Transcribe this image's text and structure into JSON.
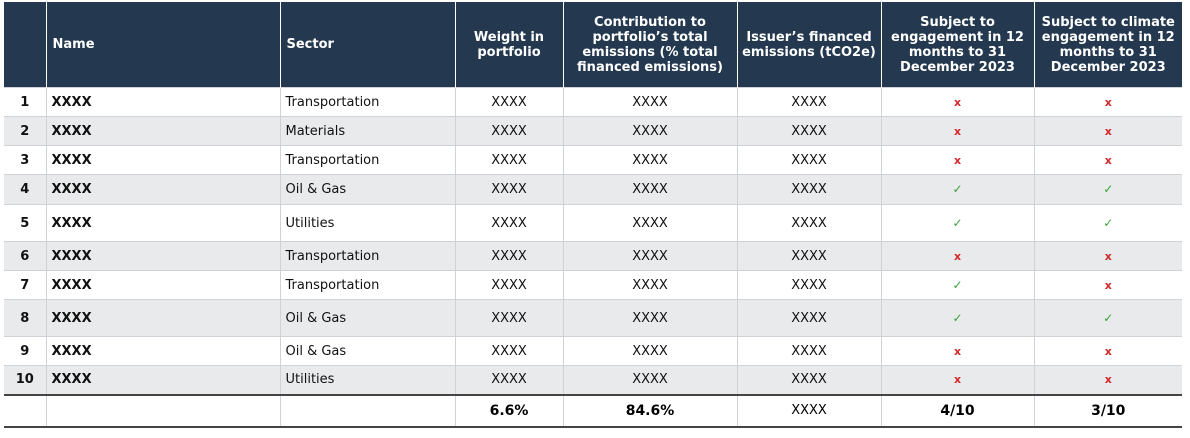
{
  "headers": {
    "num": "",
    "name": "Name",
    "sector": "Sector",
    "weight": "Weight in portfolio",
    "contribution": "Contribution to portfolio’s total emissions (% total financed emissions)",
    "issuer": "Issuer’s financed emissions (tCO2e)",
    "engagement": "Subject to engagement in 12 months to 31 December 2023",
    "climate": "Subject to climate engagement in 12 months to 31 December 2023"
  },
  "rows": [
    {
      "num": "1",
      "name": "XXXX",
      "sector": "Transportation",
      "weight": "XXXX",
      "contribution": "XXXX",
      "issuer": "XXXX",
      "engagement": "x",
      "climate": "x"
    },
    {
      "num": "2",
      "name": "XXXX",
      "sector": "Materials",
      "weight": "XXXX",
      "contribution": "XXXX",
      "issuer": "XXXX",
      "engagement": "x",
      "climate": "x"
    },
    {
      "num": "3",
      "name": "XXXX",
      "sector": "Transportation",
      "weight": "XXXX",
      "contribution": "XXXX",
      "issuer": "XXXX",
      "engagement": "x",
      "climate": "x"
    },
    {
      "num": "4",
      "name": "XXXX",
      "sector": "Oil & Gas",
      "weight": "XXXX",
      "contribution": "XXXX",
      "issuer": "XXXX",
      "engagement": "✓",
      "climate": "✓"
    },
    {
      "num": "5",
      "name": "XXXX",
      "sector": "Utilities",
      "weight": "XXXX",
      "contribution": "XXXX",
      "issuer": "XXXX",
      "engagement": "✓",
      "climate": "✓"
    },
    {
      "num": "6",
      "name": "XXXX",
      "sector": "Transportation",
      "weight": "XXXX",
      "contribution": "XXXX",
      "issuer": "XXXX",
      "engagement": "x",
      "climate": "x"
    },
    {
      "num": "7",
      "name": "XXXX",
      "sector": "Transportation",
      "weight": "XXXX",
      "contribution": "XXXX",
      "issuer": "XXXX",
      "engagement": "✓",
      "climate": "x"
    },
    {
      "num": "8",
      "name": "XXXX",
      "sector": "Oil & Gas",
      "weight": "XXXX",
      "contribution": "XXXX",
      "issuer": "XXXX",
      "engagement": "✓",
      "climate": "✓"
    },
    {
      "num": "9",
      "name": "XXXX",
      "sector": "Oil & Gas",
      "weight": "XXXX",
      "contribution": "XXXX",
      "issuer": "XXXX",
      "engagement": "x",
      "climate": "x"
    },
    {
      "num": "10",
      "name": "XXXX",
      "sector": "Utilities",
      "weight": "XXXX",
      "contribution": "XXXX",
      "issuer": "XXXX",
      "engagement": "x",
      "climate": "x"
    }
  ],
  "totals": {
    "num": "",
    "name": "",
    "sector": "",
    "weight": "6.6%",
    "contribution": "84.6%",
    "issuer": "XXXX",
    "engagement": "4/10",
    "climate": "3/10"
  },
  "colors": {
    "header_bg": "#24384f",
    "cross": "#d62828",
    "tick": "#3aa23a",
    "row_shade": "#e9eaec"
  }
}
